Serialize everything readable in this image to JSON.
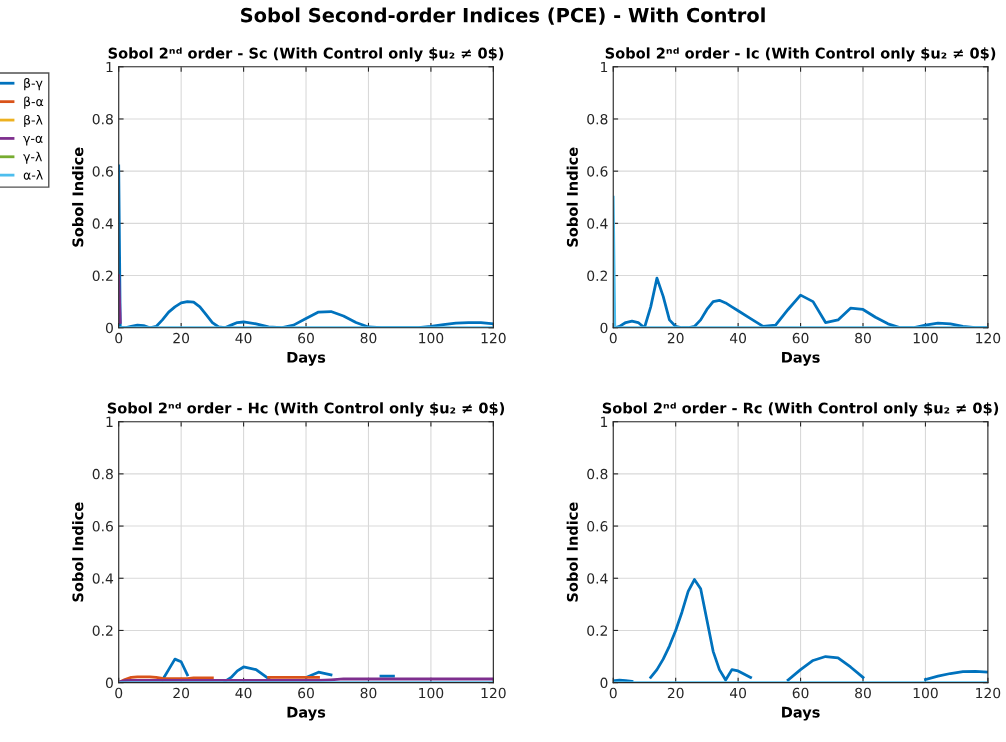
{
  "chart_data": [
    {
      "type": "line",
      "title": "Sobol 2ⁿᵈ order - Sc (With Control only $u₂ ≠ 0$)",
      "xlabel": "Days",
      "ylabel": "Sobol Indice",
      "annotations": [
        "Sobol Second-order Indices (PCE) - With Control"
      ],
      "legend": "left",
      "grid": true,
      "xlim": [
        0,
        120
      ],
      "ylim": [
        0,
        1
      ],
      "xticks": [
        0,
        20,
        40,
        60,
        80,
        100,
        120
      ],
      "yticks": [
        0,
        0.2,
        0.4,
        0.6,
        0.8,
        1
      ],
      "x": [
        0,
        0.5,
        2,
        4,
        6,
        8,
        10,
        12,
        14,
        16,
        18,
        20,
        22,
        24,
        26,
        28,
        30,
        32,
        34,
        36,
        38,
        40,
        44,
        48,
        52,
        56,
        60,
        64,
        68,
        72,
        76,
        80,
        84,
        88,
        92,
        96,
        100,
        104,
        108,
        112,
        116,
        120
      ],
      "series": [
        {
          "name": "β-γ",
          "color": "#0072bd",
          "values": [
            0.62,
            0,
            0,
            0.005,
            0.01,
            0.008,
            0,
            0.005,
            0.03,
            0.06,
            0.08,
            0.095,
            0.1,
            0.098,
            0.08,
            0.05,
            0.02,
            0.003,
            0,
            0.01,
            0.02,
            0.022,
            0.015,
            0.003,
            0,
            0.01,
            0.035,
            0.06,
            0.062,
            0.045,
            0.02,
            0.003,
            0,
            0,
            0,
            0,
            0.005,
            0.012,
            0.018,
            0.02,
            0.02,
            0.015
          ]
        },
        {
          "name": "β-α",
          "color": "#d95319",
          "values": [
            null,
            null,
            null,
            null,
            null,
            null,
            null,
            null,
            null,
            null,
            null,
            null,
            null,
            null,
            null,
            null,
            null,
            null,
            null,
            null,
            null,
            null,
            null,
            null,
            null,
            null,
            null,
            null,
            null,
            null,
            null,
            null,
            null,
            null,
            null,
            null,
            null,
            null,
            null,
            null,
            null,
            null
          ]
        },
        {
          "name": "β-λ",
          "color": "#edb120",
          "values": [
            null,
            null,
            null,
            null,
            null,
            null,
            null,
            null,
            null,
            null,
            null,
            null,
            null,
            null,
            null,
            null,
            null,
            null,
            null,
            null,
            null,
            null,
            null,
            null,
            null,
            null,
            null,
            null,
            null,
            null,
            null,
            null,
            null,
            null,
            null,
            null,
            null,
            null,
            null,
            null,
            null,
            null
          ]
        },
        {
          "name": "γ-α",
          "color": "#7e2f8e",
          "values": [
            0.2,
            0.02,
            null,
            null,
            null,
            null,
            null,
            null,
            null,
            null,
            null,
            null,
            null,
            null,
            null,
            null,
            null,
            null,
            null,
            null,
            null,
            null,
            null,
            null,
            null,
            null,
            null,
            null,
            null,
            null,
            null,
            null,
            null,
            null,
            null,
            null,
            null,
            null,
            null,
            null,
            null,
            null
          ]
        },
        {
          "name": "γ-λ",
          "color": "#77ac30",
          "values": [
            null,
            null,
            null,
            null,
            null,
            null,
            null,
            null,
            null,
            null,
            null,
            null,
            null,
            null,
            null,
            null,
            null,
            null,
            null,
            null,
            null,
            null,
            null,
            null,
            null,
            null,
            null,
            null,
            null,
            null,
            null,
            null,
            null,
            null,
            null,
            null,
            null,
            null,
            null,
            null,
            null,
            null
          ]
        },
        {
          "name": "α-λ",
          "color": "#4dbeee",
          "values": [
            0,
            0,
            0,
            0,
            0,
            0,
            0,
            0,
            0,
            0,
            0,
            0,
            0,
            0,
            0,
            0,
            0,
            0,
            0,
            0,
            0,
            0,
            0,
            0,
            0,
            0,
            0,
            0,
            0,
            0,
            0,
            0,
            0,
            0,
            0,
            0,
            0,
            0,
            0,
            0,
            0,
            0
          ]
        }
      ]
    },
    {
      "type": "line",
      "title": "Sobol 2ⁿᵈ order - Ic (With Control only $u₂ ≠ 0$)",
      "xlabel": "Days",
      "ylabel": "Sobol Indice",
      "grid": true,
      "xlim": [
        0,
        120
      ],
      "ylim": [
        0,
        1
      ],
      "xticks": [
        0,
        20,
        40,
        60,
        80,
        100,
        120
      ],
      "yticks": [
        0,
        0.2,
        0.4,
        0.6,
        0.8,
        1
      ],
      "x": [
        0,
        0.5,
        2,
        4,
        6,
        8,
        10,
        12,
        14,
        16,
        18,
        20,
        22,
        24,
        26,
        28,
        30,
        32,
        34,
        36,
        38,
        40,
        44,
        48,
        52,
        56,
        60,
        64,
        68,
        72,
        76,
        80,
        84,
        88,
        92,
        96,
        100,
        104,
        108,
        112,
        116,
        120
      ],
      "series": [
        {
          "color": "#0072bd",
          "values": [
            0,
            0,
            0.005,
            0.02,
            0.025,
            0.02,
            0,
            0.08,
            0.19,
            0.12,
            0.03,
            0.005,
            0,
            0,
            0.005,
            0.03,
            0.07,
            0.1,
            0.105,
            0.095,
            0.08,
            0.065,
            0.035,
            0.005,
            0.01,
            0.07,
            0.125,
            0.1,
            0.02,
            0.03,
            0.075,
            0.07,
            0.04,
            0.015,
            0,
            0,
            0.01,
            0.018,
            0.015,
            0.005,
            0,
            0
          ]
        },
        {
          "color": "#4dbeee",
          "values": [
            0.5,
            0,
            0,
            0,
            0,
            0,
            0,
            0,
            0,
            0,
            0,
            0,
            0,
            0,
            0,
            0,
            0,
            0,
            0,
            0,
            0,
            0,
            0,
            0,
            0,
            0,
            0,
            0,
            0,
            0,
            0,
            0,
            0,
            0,
            0,
            0,
            0,
            0,
            0,
            0,
            0,
            0
          ]
        }
      ]
    },
    {
      "type": "line",
      "title": "Sobol 2ⁿᵈ order - Hc (With Control only $u₂ ≠ 0$)",
      "xlabel": "Days",
      "ylabel": "Sobol Indice",
      "grid": true,
      "xlim": [
        0,
        120
      ],
      "ylim": [
        0,
        1
      ],
      "xticks": [
        0,
        20,
        40,
        60,
        80,
        100,
        120
      ],
      "yticks": [
        0,
        0.2,
        0.4,
        0.6,
        0.8,
        1
      ],
      "x": [
        0,
        0.5,
        2,
        4,
        6,
        8,
        10,
        12,
        14,
        16,
        18,
        20,
        22,
        24,
        26,
        28,
        30,
        32,
        34,
        36,
        38,
        40,
        44,
        48,
        52,
        56,
        60,
        64,
        68,
        72,
        76,
        80,
        84,
        88,
        92,
        96,
        100,
        104,
        108,
        112,
        116,
        120
      ],
      "series": [
        {
          "color": "#0072bd",
          "values": [
            null,
            null,
            null,
            null,
            null,
            null,
            null,
            null,
            0.01,
            0.05,
            0.09,
            0.08,
            0.03,
            null,
            null,
            null,
            null,
            null,
            0.005,
            0.02,
            0.045,
            0.06,
            0.05,
            0.015,
            null,
            null,
            0.02,
            0.04,
            0.03,
            null,
            null,
            null,
            0.025,
            0.025,
            null,
            null,
            null,
            null,
            null,
            null,
            null,
            null
          ]
        },
        {
          "color": "#d95319",
          "values": [
            0,
            0.003,
            0.012,
            0.02,
            0.022,
            0.022,
            0.022,
            0.02,
            0.016,
            0.015,
            0.015,
            0.015,
            0.015,
            0.018,
            0.018,
            0.018,
            0.018,
            null,
            null,
            null,
            null,
            null,
            null,
            0.02,
            0.02,
            0.02,
            0.02,
            0.02,
            null,
            null,
            null,
            null,
            null,
            null,
            null,
            null,
            null,
            null,
            null,
            null,
            null,
            null
          ]
        },
        {
          "color": "#7e2f8e",
          "values": [
            0,
            0.004,
            0.008,
            0.009,
            0.009,
            0.009,
            0.009,
            0.009,
            0.009,
            0.009,
            0.009,
            0.009,
            0.009,
            0.009,
            0.009,
            0.009,
            0.009,
            0.009,
            0.009,
            0.009,
            0.009,
            0.009,
            0.009,
            0.009,
            0.009,
            0.009,
            0.009,
            0.009,
            0.011,
            0.014,
            0.014,
            0.014,
            0.014,
            0.014,
            0.014,
            0.014,
            0.014,
            0.014,
            0.014,
            0.014,
            0.014,
            0.014
          ]
        },
        {
          "color": "#4dbeee",
          "values": [
            0,
            0,
            0,
            0,
            0,
            0,
            0,
            0,
            0,
            0,
            0,
            0,
            0,
            0,
            0,
            0,
            0,
            0,
            0,
            0,
            0,
            0,
            0,
            0,
            0,
            0,
            0,
            0,
            0,
            0,
            0,
            0,
            0,
            0,
            0,
            0,
            0,
            0,
            0,
            0,
            0,
            0
          ]
        }
      ]
    },
    {
      "type": "line",
      "title": "Sobol 2ⁿᵈ order - Rc (With Control only $u₂ ≠ 0$)",
      "xlabel": "Days",
      "ylabel": "Sobol Indice",
      "grid": true,
      "xlim": [
        0,
        120
      ],
      "ylim": [
        0,
        1
      ],
      "xticks": [
        0,
        20,
        40,
        60,
        80,
        100,
        120
      ],
      "yticks": [
        0,
        0.2,
        0.4,
        0.6,
        0.8,
        1
      ],
      "x": [
        0,
        0.5,
        2,
        4,
        6,
        8,
        10,
        12,
        14,
        16,
        18,
        20,
        22,
        24,
        26,
        28,
        30,
        32,
        34,
        36,
        38,
        40,
        44,
        48,
        52,
        56,
        60,
        64,
        68,
        72,
        76,
        80,
        84,
        88,
        92,
        96,
        100,
        104,
        108,
        112,
        116,
        120
      ],
      "series": [
        {
          "color": "#0072bd",
          "values": [
            0.005,
            0.008,
            0.01,
            0.008,
            0.005,
            null,
            null,
            0.02,
            0.05,
            0.09,
            0.14,
            0.2,
            0.27,
            0.35,
            0.395,
            0.36,
            0.24,
            0.12,
            0.05,
            0.01,
            0.05,
            0.045,
            0.02,
            null,
            null,
            0.01,
            0.05,
            0.085,
            0.1,
            0.095,
            0.06,
            0.02,
            null,
            null,
            null,
            null,
            0.012,
            0.025,
            0.035,
            0.042,
            0.043,
            0.04
          ]
        },
        {
          "color": "#4dbeee",
          "values": [
            0,
            0,
            0,
            0,
            0,
            0,
            0,
            0,
            0,
            0,
            0,
            0,
            0,
            0,
            0,
            0,
            0,
            0,
            0,
            0,
            0,
            0,
            0,
            0,
            0,
            0,
            0,
            0,
            0,
            0,
            0,
            0,
            0,
            0,
            0,
            0,
            0,
            0,
            0,
            0,
            0,
            0
          ]
        }
      ]
    }
  ]
}
